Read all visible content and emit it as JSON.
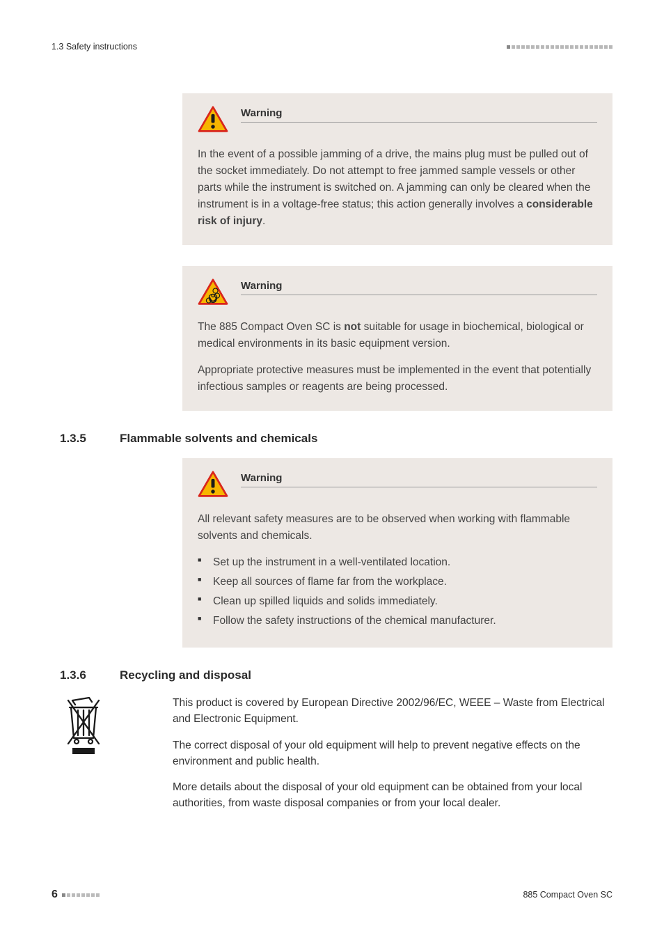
{
  "header": {
    "left": "1.3 Safety instructions"
  },
  "callouts": {
    "warn1": {
      "title": "Warning",
      "body": [
        "In the event of a possible jamming of a drive, the mains plug must be pulled out of the socket immediately. Do not attempt to free jammed sample vessels or other parts while the instrument is switched on. A jamming can only be cleared when the instrument is in a voltage-free status; this action generally involves a <b>considerable risk of injury</b>."
      ]
    },
    "warn2": {
      "title": "Warning",
      "body": [
        "The 885 Compact Oven SC is <b>not</b> suitable for usage in biochemical, biological or medical environments in its basic equipment version.",
        "Appropriate protective measures must be implemented in the event that potentially infectious samples or reagents are being processed."
      ]
    },
    "warn3": {
      "title": "Warning",
      "intro": "All relevant safety measures are to be observed when working with flammable solvents and chemicals.",
      "items": [
        "Set up the instrument in a well-ventilated location.",
        "Keep all sources of flame far from the workplace.",
        "Clean up spilled liquids and solids immediately.",
        "Follow the safety instructions of the chemical manufacturer."
      ]
    }
  },
  "sections": {
    "s135": {
      "num": "1.3.5",
      "title": "Flammable solvents and chemicals"
    },
    "s136": {
      "num": "1.3.6",
      "title": "Recycling and disposal"
    }
  },
  "disposal": {
    "p1": "This product is covered by European Directive 2002/96/EC, WEEE – Waste from Electrical and Electronic Equipment.",
    "p2": "The correct disposal of your old equipment will help to prevent negative effects on the environment and public health.",
    "p3": "More details about the disposal of your old equipment can be obtained from your local authorities, from waste disposal companies or from your local dealer."
  },
  "footer": {
    "page": "6",
    "right": "885 Compact Oven SC"
  },
  "colors": {
    "callout_bg": "#ede8e4",
    "tri_border": "#d9261c",
    "tri_fill": "#f7b500",
    "tri_glyph": "#1a1a1a"
  }
}
